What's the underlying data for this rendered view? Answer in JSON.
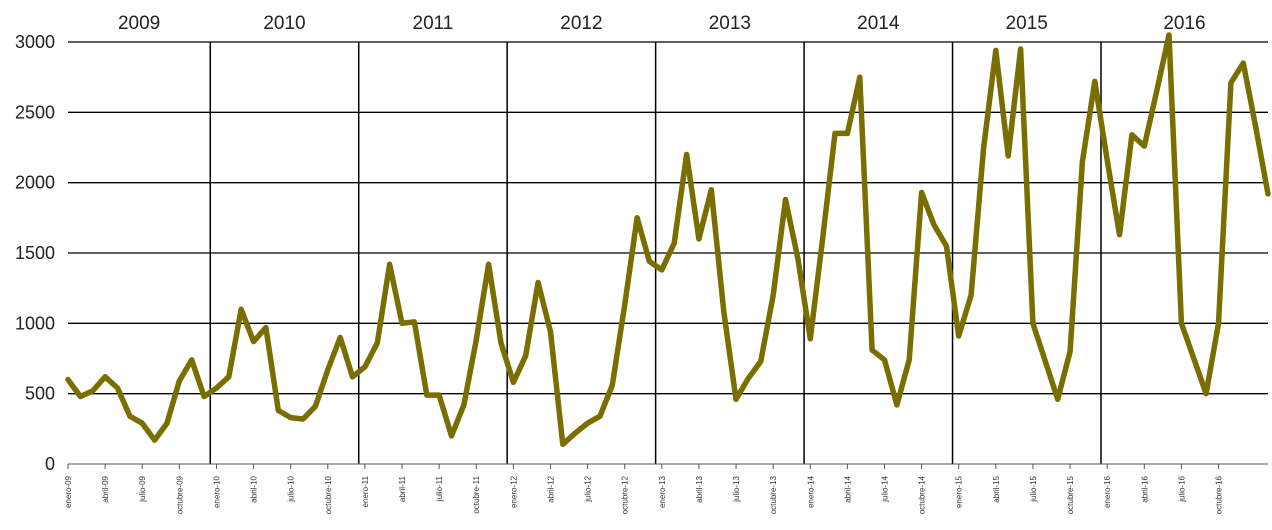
{
  "chart_data": {
    "type": "line",
    "title": "",
    "xlabel": "",
    "ylabel": "",
    "ylim": [
      0,
      3000
    ],
    "yticks": [
      0,
      500,
      1000,
      1500,
      2000,
      2500,
      3000
    ],
    "years": [
      "2009",
      "2010",
      "2011",
      "2012",
      "2013",
      "2014",
      "2015",
      "2016"
    ],
    "x_tick_labels": [
      "enero-09",
      "abril-09",
      "julio-09",
      "octubre-09",
      "enero-10",
      "abril-10",
      "julio-10",
      "octubre-10",
      "enero-11",
      "abril-11",
      "julio-11",
      "octubre-11",
      "enero-12",
      "abril-12",
      "julio-12",
      "octubre-12",
      "enero-13",
      "abril-13",
      "julio-13",
      "octubre-13",
      "enero-14",
      "abril-14",
      "julio-14",
      "octubre-14",
      "enero-15",
      "abril-15",
      "julio-15",
      "octubre-15",
      "enero-16",
      "abril-16",
      "julio-16",
      "octubre-16"
    ],
    "grid": "horizontal lines and vertical year separators",
    "line_color": "#7a6e00",
    "series": [
      {
        "values": [
          600,
          480,
          520,
          620,
          540,
          340,
          290,
          170,
          290,
          590,
          740,
          480,
          540,
          620,
          1100,
          870,
          970,
          380,
          330,
          320,
          410,
          670,
          900,
          620,
          690,
          860,
          1420,
          1000,
          1010,
          490,
          490,
          200,
          420,
          880,
          1420,
          860,
          580,
          770,
          1290,
          940,
          140,
          220,
          290,
          340,
          560,
          1130,
          1750,
          1440,
          1380,
          1570,
          2200,
          1600,
          1950,
          1090,
          460,
          610,
          730,
          1200,
          1880,
          1460,
          890,
          1600,
          2350,
          2350,
          2750,
          810,
          740,
          420,
          740,
          1930,
          1700,
          1550,
          910,
          1200,
          2240,
          2940,
          2190,
          2950,
          1000,
          730,
          460,
          800,
          2150,
          2720,
          2160,
          1630,
          2340,
          2260,
          2650,
          3050,
          1000,
          750,
          500,
          1000,
          2710,
          2850,
          2400,
          1920
        ]
      }
    ]
  }
}
